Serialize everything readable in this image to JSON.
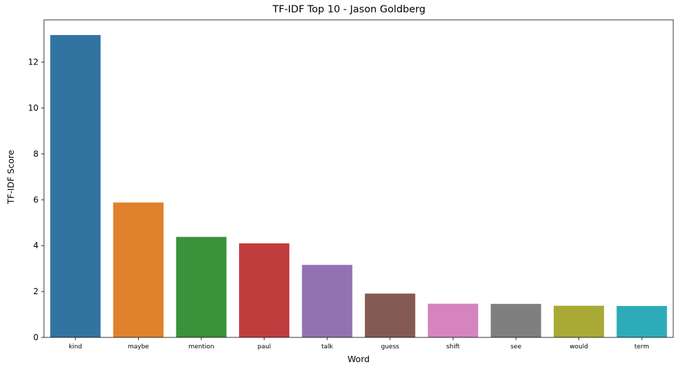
{
  "chart_data": {
    "type": "bar",
    "title": "TF-IDF Top 10 - Jason Goldberg",
    "xlabel": "Word",
    "ylabel": "TF-IDF Score",
    "categories": [
      "kind",
      "maybe",
      "mention",
      "paul",
      "talk",
      "guess",
      "shift",
      "see",
      "would",
      "term"
    ],
    "values": [
      13.18,
      5.88,
      4.38,
      4.1,
      3.16,
      1.91,
      1.47,
      1.46,
      1.38,
      1.37
    ],
    "colors": [
      "#3274a1",
      "#e1812c",
      "#3a923a",
      "#c03d3e",
      "#9372b2",
      "#845b53",
      "#d684bd",
      "#7f7f7f",
      "#a9aa35",
      "#2eabb8"
    ],
    "yticks": [
      0,
      2,
      4,
      6,
      8,
      10,
      12
    ],
    "ylim": [
      0,
      13.84
    ],
    "grid": false,
    "legend": "none"
  }
}
